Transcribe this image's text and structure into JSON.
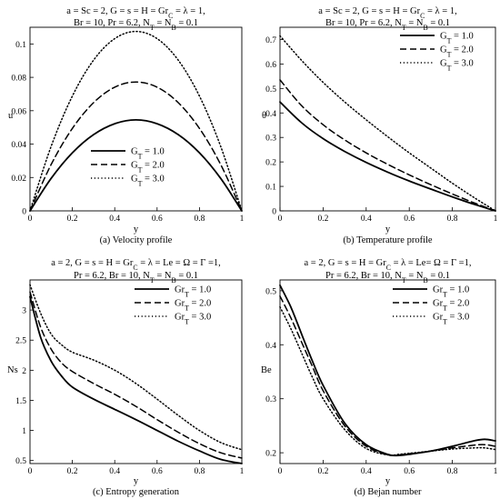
{
  "chart_data": [
    {
      "type": "line",
      "title_lines": [
        "a = Sc = 2, G = s = H = Gr_C = λ = 1,",
        "Br = 10, Pr = 6.2, N_T = N_B = 0.1"
      ],
      "caption": "(a) Velocity profile",
      "xlabel": "y",
      "ylabel": "u",
      "xlim": [
        0,
        1
      ],
      "ylim": [
        0,
        0.11
      ],
      "xticks": [
        0,
        0.2,
        0.4,
        0.6,
        0.8,
        1
      ],
      "yticks": [
        0,
        0.02,
        0.04,
        0.06,
        0.08,
        0.1
      ],
      "legend_position": "lower-center",
      "x": [
        0,
        0.1,
        0.2,
        0.3,
        0.4,
        0.5,
        0.6,
        0.7,
        0.8,
        0.9,
        1.0
      ],
      "series": [
        {
          "name": "G_T = 1.0",
          "style": "solid",
          "values": [
            0,
            0.0195,
            0.0348,
            0.0457,
            0.0522,
            0.0545,
            0.0522,
            0.0457,
            0.0348,
            0.0195,
            0
          ]
        },
        {
          "name": "G_T = 2.0",
          "style": "dashed",
          "values": [
            0,
            0.0278,
            0.0494,
            0.0648,
            0.0741,
            0.0772,
            0.0741,
            0.0648,
            0.0494,
            0.0278,
            0
          ]
        },
        {
          "name": "G_T = 3.0",
          "style": "dotted",
          "values": [
            0,
            0.0387,
            0.0688,
            0.0903,
            0.1032,
            0.1075,
            0.1032,
            0.0903,
            0.0688,
            0.0387,
            0
          ]
        }
      ]
    },
    {
      "type": "line",
      "title_lines": [
        "a = Sc = 2, G = s = H = Gr_C = λ = 1,",
        "Br = 10, Pr = 6.2, N_T = N_B = 0.1"
      ],
      "caption": "(b) Temperature profile",
      "xlabel": "y",
      "ylabel": "θ",
      "xlim": [
        0,
        1
      ],
      "ylim": [
        0,
        0.75
      ],
      "xticks": [
        0,
        0.2,
        0.4,
        0.6,
        0.8,
        1
      ],
      "yticks": [
        0,
        0.1,
        0.2,
        0.3,
        0.4,
        0.5,
        0.6,
        0.7
      ],
      "legend_position": "top-right",
      "x": [
        0,
        0.1,
        0.2,
        0.3,
        0.4,
        0.5,
        0.6,
        0.7,
        0.8,
        0.9,
        1.0
      ],
      "series": [
        {
          "name": "G_T = 1.0",
          "style": "solid",
          "values": [
            0.445,
            0.36,
            0.295,
            0.243,
            0.198,
            0.158,
            0.122,
            0.089,
            0.057,
            0.027,
            0
          ]
        },
        {
          "name": "G_T = 2.0",
          "style": "dashed",
          "values": [
            0.535,
            0.43,
            0.352,
            0.29,
            0.237,
            0.19,
            0.147,
            0.107,
            0.069,
            0.033,
            0
          ]
        },
        {
          "name": "G_T = 3.0",
          "style": "dotted",
          "values": [
            0.715,
            0.615,
            0.525,
            0.445,
            0.372,
            0.303,
            0.237,
            0.175,
            0.113,
            0.055,
            0
          ]
        }
      ]
    },
    {
      "type": "line",
      "title_lines": [
        "a = 2, G = s = H = Gr_C = λ = Le = Ω = Γ =1,",
        "Pr = 6.2, Br = 10, N_T = N_B = 0.1"
      ],
      "caption": "(c) Entropy generation",
      "xlabel": "y",
      "ylabel": "Ns",
      "xlim": [
        0,
        1
      ],
      "ylim": [
        0.45,
        3.5
      ],
      "xticks": [
        0,
        0.2,
        0.4,
        0.6,
        0.8,
        1
      ],
      "yticks": [
        0.5,
        1,
        1.5,
        2,
        2.5,
        3
      ],
      "legend_position": "top-right",
      "x": [
        0,
        0.05,
        0.1,
        0.15,
        0.2,
        0.3,
        0.4,
        0.5,
        0.6,
        0.7,
        0.8,
        0.9,
        1.0
      ],
      "series": [
        {
          "name": "Gr_T = 1.0",
          "style": "solid",
          "values": [
            3.22,
            2.55,
            2.15,
            1.9,
            1.72,
            1.52,
            1.35,
            1.18,
            1.0,
            0.82,
            0.66,
            0.52,
            0.45
          ]
        },
        {
          "name": "Gr_T = 2.0",
          "style": "dashed",
          "values": [
            3.3,
            2.72,
            2.35,
            2.12,
            1.98,
            1.78,
            1.6,
            1.4,
            1.18,
            0.97,
            0.78,
            0.63,
            0.54
          ]
        },
        {
          "name": "Gr_T = 3.0",
          "style": "dotted",
          "values": [
            3.42,
            2.95,
            2.6,
            2.42,
            2.3,
            2.17,
            2.0,
            1.78,
            1.52,
            1.25,
            1.0,
            0.8,
            0.68
          ]
        }
      ]
    },
    {
      "type": "line",
      "title_lines": [
        "a = 2, G = s = H = Gr_C = λ = Le= Ω = Γ =1,",
        "Pr = 6.2, Br = 10, N_T = N_B = 0.1"
      ],
      "caption": "(d) Bejan number",
      "xlabel": "y",
      "ylabel": "Be",
      "xlim": [
        0,
        1
      ],
      "ylim": [
        0.18,
        0.52
      ],
      "xticks": [
        0,
        0.2,
        0.4,
        0.6,
        0.8,
        1
      ],
      "yticks": [
        0.2,
        0.3,
        0.4,
        0.5
      ],
      "legend_position": "top-right",
      "x": [
        0,
        0.05,
        0.1,
        0.15,
        0.2,
        0.3,
        0.4,
        0.5,
        0.55,
        0.6,
        0.7,
        0.8,
        0.9,
        0.95,
        1.0
      ],
      "series": [
        {
          "name": "Gr_T = 1.0",
          "style": "solid",
          "values": [
            0.51,
            0.47,
            0.42,
            0.37,
            0.325,
            0.255,
            0.215,
            0.197,
            0.195,
            0.197,
            0.203,
            0.212,
            0.222,
            0.225,
            0.222
          ]
        },
        {
          "name": "Gr_T = 2.0",
          "style": "dashed",
          "values": [
            0.49,
            0.45,
            0.405,
            0.36,
            0.315,
            0.25,
            0.212,
            0.196,
            0.196,
            0.198,
            0.203,
            0.209,
            0.214,
            0.215,
            0.212
          ]
        },
        {
          "name": "Gr_T = 3.0",
          "style": "dotted",
          "values": [
            0.47,
            0.43,
            0.385,
            0.34,
            0.3,
            0.243,
            0.208,
            0.196,
            0.197,
            0.199,
            0.203,
            0.207,
            0.209,
            0.209,
            0.206
          ]
        }
      ]
    }
  ]
}
